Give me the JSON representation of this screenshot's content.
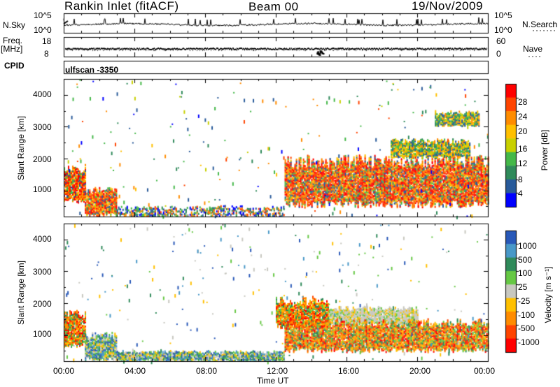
{
  "header": {
    "station": "Rankin Inlet (fitACF)",
    "beam": "Beam 00",
    "date": "19/Nov/2009"
  },
  "top_panels": {
    "nsky_label": "N.Sky",
    "nsky_ticks": [
      "10^5",
      "10^0"
    ],
    "nsearch_label": "N.Search",
    "nsearch_ticks": [
      "10^5",
      "10^0"
    ],
    "freq_label_line1": "Freq.",
    "freq_label_line2": "[MHz]",
    "freq_ticks": [
      "18",
      "8"
    ],
    "nave_label": "Nave",
    "nave_ticks": [
      "60",
      "0"
    ],
    "cpid_label": "CPID",
    "cpid_value": "ulfscan -3350"
  },
  "colorbars": {
    "power": {
      "label": "Power [dB]",
      "ticks": [
        "28",
        "24",
        "20",
        "16",
        "12",
        "8",
        "4"
      ],
      "colors": [
        "#ff0000",
        "#ff4400",
        "#ff8c00",
        "#ffc000",
        "#c8d000",
        "#44b848",
        "#2f8a5a",
        "#285a9a",
        "#0000ff"
      ]
    },
    "velocity": {
      "label": "Velocity [m s⁻¹]",
      "ticks": [
        "1000",
        "500",
        "100",
        "25",
        "-25",
        "-100",
        "-500",
        "-1000"
      ],
      "colors": [
        "#2858b8",
        "#4898c8",
        "#2f8a5a",
        "#66c844",
        "#c8c8c0",
        "#ffc000",
        "#ff8c00",
        "#ff4400",
        "#ff0000"
      ]
    }
  },
  "chart_data": [
    {
      "type": "heatmap",
      "title": "Power",
      "ylabel": "Slant Range [km]",
      "ylim": [
        180,
        4500
      ],
      "yticks": [
        "4000",
        "3000",
        "2000",
        "1000"
      ],
      "xlim_hours": [
        0,
        24
      ],
      "echo_bands": [
        {
          "t0": 0.0,
          "t1": 1.2,
          "r0": 600,
          "r1": 1800,
          "level": "high"
        },
        {
          "t0": 1.2,
          "t1": 3.0,
          "r0": 180,
          "r1": 1100,
          "level": "high"
        },
        {
          "t0": 3.0,
          "t1": 12.5,
          "r0": 180,
          "r1": 500,
          "level": "low"
        },
        {
          "t0": 12.5,
          "t1": 24.0,
          "r0": 450,
          "r1": 2100,
          "level": "high"
        },
        {
          "t0": 18.5,
          "t1": 23.0,
          "r0": 2000,
          "r1": 2600,
          "level": "mid"
        },
        {
          "t0": 21.0,
          "t1": 23.5,
          "r0": 3000,
          "r1": 3500,
          "level": "mid"
        }
      ]
    },
    {
      "type": "heatmap",
      "title": "Velocity",
      "ylabel": "Slant Range [km]",
      "ylim": [
        180,
        4500
      ],
      "yticks": [
        "4000",
        "3000",
        "2000",
        "1000"
      ],
      "xlim_hours": [
        0,
        24
      ],
      "echo_bands": [
        {
          "t0": 0.0,
          "t1": 1.2,
          "r0": 600,
          "r1": 1800,
          "level": "neg"
        },
        {
          "t0": 1.2,
          "t1": 3.0,
          "r0": 180,
          "r1": 1100,
          "level": "pos"
        },
        {
          "t0": 3.0,
          "t1": 12.5,
          "r0": 180,
          "r1": 500,
          "level": "pos"
        },
        {
          "t0": 12.0,
          "t1": 15.0,
          "r0": 1200,
          "r1": 2200,
          "level": "neg"
        },
        {
          "t0": 15.0,
          "t1": 20.0,
          "r0": 1300,
          "r1": 1900,
          "level": "zero"
        },
        {
          "t0": 12.5,
          "t1": 24.0,
          "r0": 450,
          "r1": 1500,
          "level": "neg"
        }
      ]
    }
  ],
  "xaxis": {
    "ticks": [
      "00:00",
      "04:00",
      "08:00",
      "12:00",
      "16:00",
      "20:00",
      "00:00"
    ],
    "label": "Time UT"
  }
}
